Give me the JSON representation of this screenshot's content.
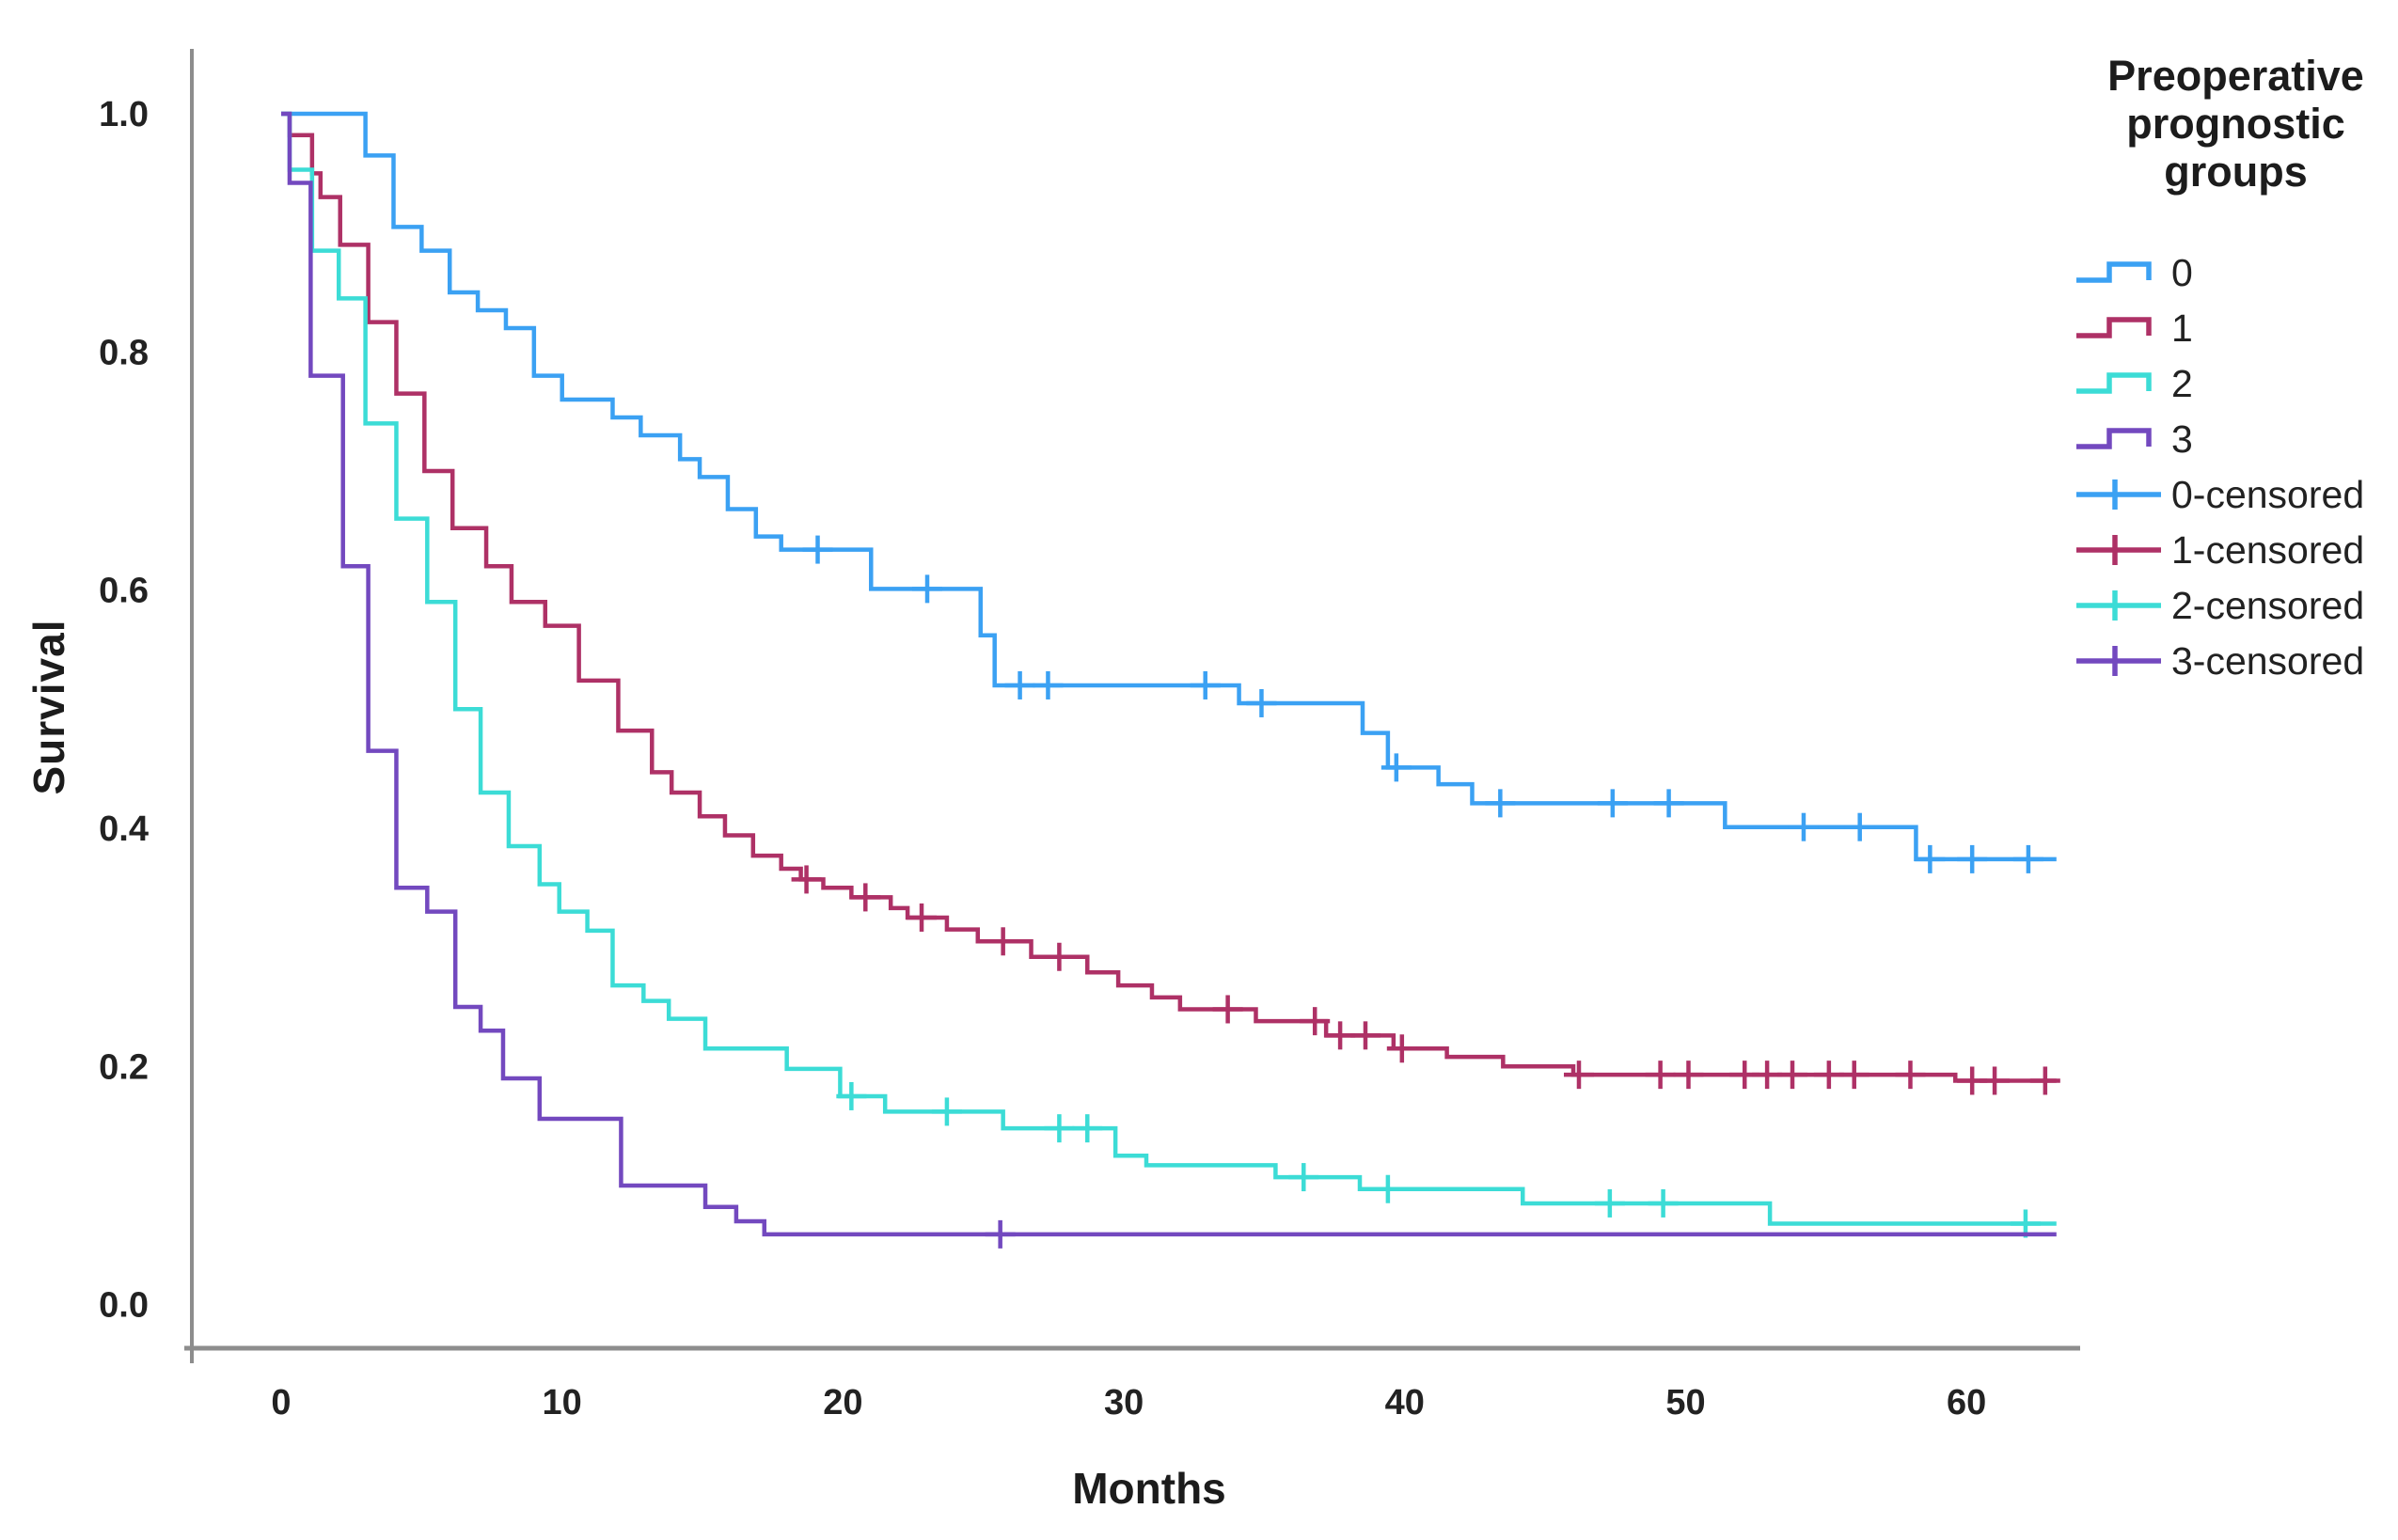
{
  "chart_data": {
    "type": "line",
    "subtype": "kaplan-meier-step-plot",
    "title": "",
    "xlabel": "Months",
    "ylabel": "Survival",
    "legend_title": "Preoperative prognostic groups",
    "legend_position": "right",
    "grid": false,
    "xlim": [
      0,
      63.5
    ],
    "ylim": [
      0.0,
      1.0
    ],
    "x_ticks": [
      {
        "label": "0",
        "value": 0
      },
      {
        "label": "10",
        "value": 10
      },
      {
        "label": "20",
        "value": 20
      },
      {
        "label": "30",
        "value": 30
      },
      {
        "label": "40",
        "value": 40
      },
      {
        "label": "50",
        "value": 50
      },
      {
        "label": "60",
        "value": 60
      }
    ],
    "y_ticks": [
      {
        "label": "1.0",
        "value": 1.0
      },
      {
        "label": "0.8",
        "value": 0.8
      },
      {
        "label": "0.6",
        "value": 0.6
      },
      {
        "label": "0.4",
        "value": 0.4
      },
      {
        "label": "0.2",
        "value": 0.2
      },
      {
        "label": "0.0",
        "value": 0.0
      }
    ],
    "axis_color": "#8d8d8d",
    "text_color": "#222222",
    "curve_end_month": 63.2,
    "series": [
      {
        "name": "0",
        "censored_label": "0-censored",
        "color": "#3BA1F3",
        "steps": [
          [
            0,
            1.0
          ],
          [
            3,
            0.965
          ],
          [
            4,
            0.905
          ],
          [
            5,
            0.885
          ],
          [
            6,
            0.85
          ],
          [
            7,
            0.835
          ],
          [
            8,
            0.82
          ],
          [
            9,
            0.78
          ],
          [
            10,
            0.76
          ],
          [
            11.8,
            0.745
          ],
          [
            12.8,
            0.73
          ],
          [
            14.2,
            0.71
          ],
          [
            14.9,
            0.695
          ],
          [
            15.9,
            0.668
          ],
          [
            16.9,
            0.645
          ],
          [
            17.8,
            0.634
          ],
          [
            21,
            0.601
          ],
          [
            24.9,
            0.562
          ],
          [
            25.4,
            0.52
          ],
          [
            34.1,
            0.505
          ],
          [
            38.5,
            0.48
          ],
          [
            39.4,
            0.451
          ],
          [
            41.2,
            0.437
          ],
          [
            42.4,
            0.421
          ],
          [
            51.4,
            0.401
          ],
          [
            58.2,
            0.374
          ]
        ],
        "censored_times": [
          19.1,
          23.0,
          26.3,
          27.3,
          32.9,
          34.9,
          39.7,
          43.4,
          47.4,
          49.4,
          54.2,
          56.2,
          58.7,
          60.2,
          62.2
        ]
      },
      {
        "name": "1",
        "censored_label": "1-censored",
        "color": "#AE3166",
        "steps": [
          [
            0,
            1.0
          ],
          [
            0.3,
            0.982
          ],
          [
            1.1,
            0.95
          ],
          [
            1.4,
            0.93
          ],
          [
            2.1,
            0.89
          ],
          [
            3.1,
            0.825
          ],
          [
            4.1,
            0.765
          ],
          [
            5.1,
            0.7
          ],
          [
            6.1,
            0.652
          ],
          [
            7.3,
            0.62
          ],
          [
            8.2,
            0.59
          ],
          [
            9.4,
            0.57
          ],
          [
            10.6,
            0.524
          ],
          [
            12,
            0.482
          ],
          [
            13.2,
            0.447
          ],
          [
            13.9,
            0.43
          ],
          [
            14.9,
            0.41
          ],
          [
            15.8,
            0.394
          ],
          [
            16.8,
            0.377
          ],
          [
            17.8,
            0.366
          ],
          [
            18.5,
            0.357
          ],
          [
            19.3,
            0.35
          ],
          [
            20.3,
            0.342
          ],
          [
            21.7,
            0.333
          ],
          [
            22.3,
            0.325
          ],
          [
            23.7,
            0.315
          ],
          [
            24.8,
            0.305
          ],
          [
            26.7,
            0.292
          ],
          [
            28.7,
            0.279
          ],
          [
            29.8,
            0.268
          ],
          [
            31,
            0.258
          ],
          [
            32,
            0.248
          ],
          [
            34.7,
            0.238
          ],
          [
            37.2,
            0.226
          ],
          [
            39.6,
            0.215
          ],
          [
            41.5,
            0.208
          ],
          [
            43.5,
            0.2
          ],
          [
            46,
            0.193
          ],
          [
            59.6,
            0.188
          ]
        ],
        "censored_times": [
          18.7,
          20.8,
          22.8,
          25.7,
          27.7,
          33.7,
          36.8,
          37.7,
          38.6,
          39.9,
          46.2,
          49.1,
          50.1,
          52.1,
          52.9,
          53.8,
          55.1,
          56.0,
          58.0,
          60.2,
          61.0,
          62.8
        ]
      },
      {
        "name": "2",
        "censored_label": "2-censored",
        "color": "#3CDCD6",
        "steps": [
          [
            0,
            1.0
          ],
          [
            0.3,
            0.953
          ],
          [
            1.1,
            0.885
          ],
          [
            2.05,
            0.845
          ],
          [
            3,
            0.74
          ],
          [
            4.1,
            0.66
          ],
          [
            5.2,
            0.59
          ],
          [
            6.2,
            0.5
          ],
          [
            7.1,
            0.43
          ],
          [
            8.1,
            0.385
          ],
          [
            9.2,
            0.353
          ],
          [
            9.9,
            0.33
          ],
          [
            10.9,
            0.314
          ],
          [
            11.8,
            0.268
          ],
          [
            12.9,
            0.255
          ],
          [
            13.8,
            0.24
          ],
          [
            15.1,
            0.215
          ],
          [
            18,
            0.198
          ],
          [
            19.9,
            0.175
          ],
          [
            21.5,
            0.162
          ],
          [
            25.7,
            0.148
          ],
          [
            29.7,
            0.125
          ],
          [
            30.8,
            0.117
          ],
          [
            35.4,
            0.107
          ],
          [
            38.4,
            0.097
          ],
          [
            44.2,
            0.085
          ],
          [
            53,
            0.068
          ]
        ],
        "censored_times": [
          20.3,
          23.7,
          27.7,
          28.7,
          36.4,
          39.4,
          47.3,
          49.2,
          62.1
        ]
      },
      {
        "name": "3",
        "censored_label": "3-censored",
        "color": "#7349BF",
        "steps": [
          [
            0,
            1.0
          ],
          [
            0.3,
            0.942
          ],
          [
            1.05,
            0.78
          ],
          [
            2.2,
            0.62
          ],
          [
            3.1,
            0.465
          ],
          [
            4.1,
            0.35
          ],
          [
            5.2,
            0.33
          ],
          [
            6.2,
            0.25
          ],
          [
            7.1,
            0.23
          ],
          [
            7.9,
            0.19
          ],
          [
            9.2,
            0.156
          ],
          [
            12.1,
            0.1
          ],
          [
            15.1,
            0.082
          ],
          [
            16.2,
            0.07
          ],
          [
            17.2,
            0.059
          ]
        ],
        "censored_times": [
          25.6
        ]
      }
    ]
  }
}
